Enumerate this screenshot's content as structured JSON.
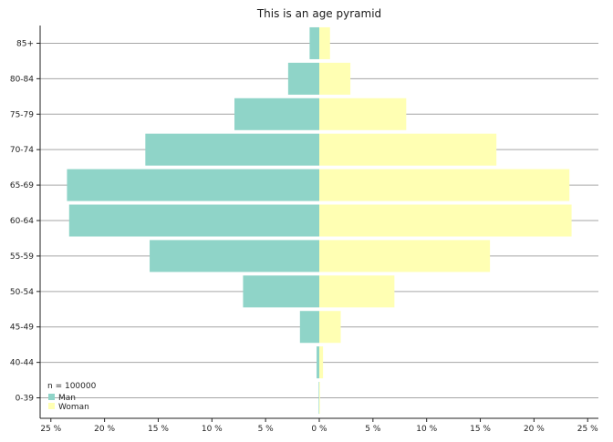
{
  "chart_data": {
    "type": "bar",
    "orientation": "horizontal",
    "title": "This is an age pyramid",
    "note": "n = 100000",
    "categories": [
      "0-39",
      "40-44",
      "45-49",
      "50-54",
      "55-59",
      "60-64",
      "65-69",
      "70-74",
      "75-79",
      "80-84",
      "85+"
    ],
    "series": [
      {
        "name": "Man",
        "color": "#8fd4c8",
        "direction": "left",
        "values": [
          0.05,
          0.25,
          1.8,
          7.1,
          15.8,
          23.3,
          23.5,
          16.2,
          7.9,
          2.9,
          0.9
        ]
      },
      {
        "name": "Woman",
        "color": "#ffffb3",
        "direction": "right",
        "values": [
          0.05,
          0.35,
          2.0,
          7.0,
          15.9,
          23.5,
          23.3,
          16.5,
          8.1,
          2.9,
          1.0
        ]
      }
    ],
    "xlim": [
      -26,
      26
    ],
    "x_ticks": [
      -25,
      -20,
      -15,
      -10,
      -5,
      0,
      5,
      10,
      15,
      20,
      25
    ],
    "x_tick_labels": [
      "25 %",
      "20 %",
      "15 %",
      "10 %",
      "5 %",
      "0 %",
      "5 %",
      "10 %",
      "15 %",
      "20 %",
      "25 %"
    ],
    "grid": "horizontal",
    "legend_position": "bottom-left"
  }
}
